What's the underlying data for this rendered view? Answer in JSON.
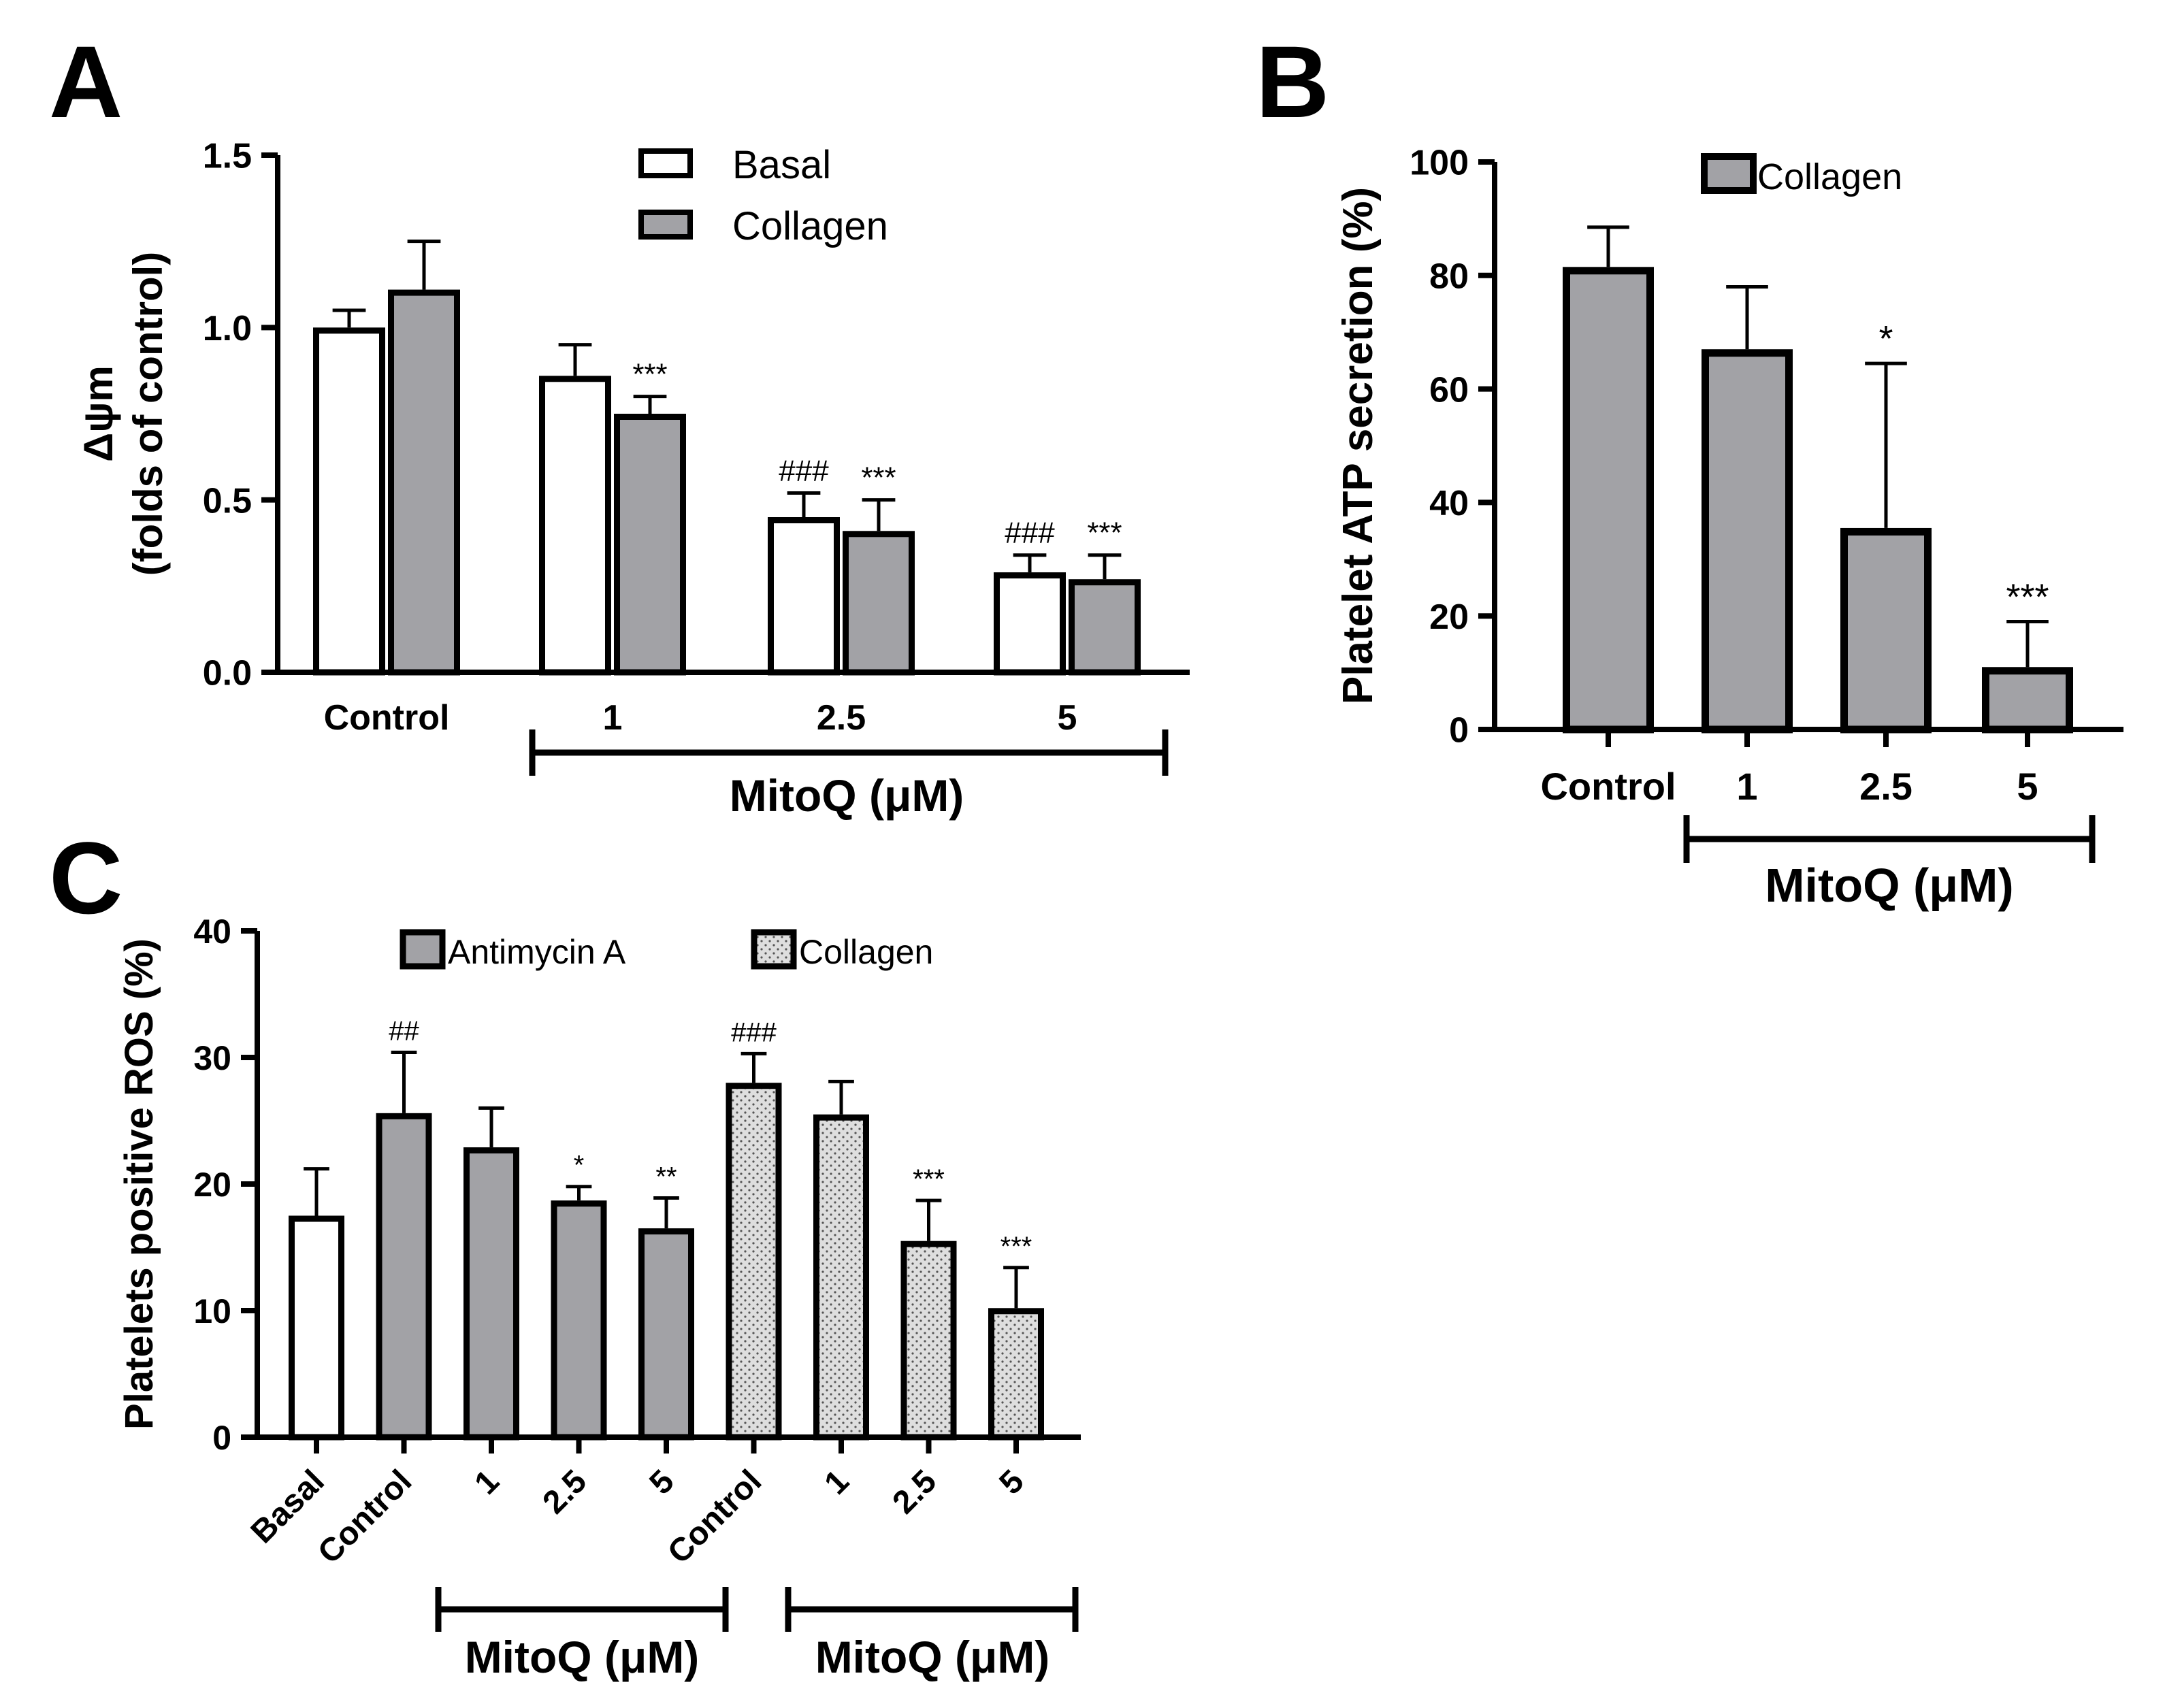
{
  "chart_data": [
    {
      "panel": "A",
      "type": "bar",
      "ylabel_line1": "Δψm",
      "ylabel_line2": "(folds of control)",
      "ylim": [
        0,
        1.5
      ],
      "yticks": [
        "0.0",
        "0.5",
        "1.0",
        "1.5"
      ],
      "categories": [
        "Control",
        "1",
        "2.5",
        "5"
      ],
      "group_label": "MitoQ (μM)",
      "legend": [
        "Basal",
        "Collagen"
      ],
      "series": [
        {
          "name": "Basal",
          "fill": "#ffffff",
          "values": [
            1.0,
            0.86,
            0.45,
            0.29
          ],
          "errors": [
            0.05,
            0.09,
            0.07,
            0.05
          ],
          "annotations": [
            "",
            "",
            "###",
            "###"
          ]
        },
        {
          "name": "Collagen",
          "fill": "#a2a2a6",
          "values": [
            1.11,
            0.75,
            0.41,
            0.27
          ],
          "errors": [
            0.14,
            0.05,
            0.09,
            0.07
          ],
          "annotations": [
            "",
            "***",
            "***",
            "***"
          ]
        }
      ]
    },
    {
      "panel": "B",
      "type": "bar",
      "ylabel": "Platelet ATP secretion (%)",
      "ylim": [
        0,
        100
      ],
      "yticks": [
        "0",
        "20",
        "40",
        "60",
        "80",
        "100"
      ],
      "categories": [
        "Control",
        "1",
        "2.5",
        "5"
      ],
      "group_label": "MitoQ (μM)",
      "legend": [
        "Collagen"
      ],
      "series": [
        {
          "name": "Collagen",
          "fill": "#a2a2a6",
          "values": [
            81.5,
            67,
            35.5,
            11
          ],
          "errors": [
            7,
            11,
            29,
            8
          ],
          "annotations": [
            "",
            "",
            "*",
            "***"
          ]
        }
      ]
    },
    {
      "panel": "C",
      "type": "bar",
      "ylabel": "Platelets positive ROS (%)",
      "ylim": [
        0,
        40
      ],
      "yticks": [
        "0",
        "10",
        "20",
        "30",
        "40"
      ],
      "categories": [
        "Basal",
        "Control",
        "1",
        "2.5",
        "5",
        "Control",
        "1",
        "2.5",
        "5"
      ],
      "group_label": "MitoQ (μM)",
      "legend": [
        "Antimycin A",
        "Collagen"
      ],
      "bars": [
        {
          "category": "Basal",
          "series": "Basal",
          "fill": "#ffffff",
          "value": 17.5,
          "error": 3.7,
          "annotation": ""
        },
        {
          "category": "Control",
          "series": "Antimycin A",
          "fill": "#a2a2a6",
          "value": 25.6,
          "error": 4.8,
          "annotation": "##"
        },
        {
          "category": "1",
          "series": "Antimycin A",
          "fill": "#a2a2a6",
          "value": 22.9,
          "error": 3.1,
          "annotation": ""
        },
        {
          "category": "2.5",
          "series": "Antimycin A",
          "fill": "#a2a2a6",
          "value": 18.7,
          "error": 1.1,
          "annotation": "*"
        },
        {
          "category": "5",
          "series": "Antimycin A",
          "fill": "#a2a2a6",
          "value": 16.5,
          "error": 2.4,
          "annotation": "**"
        },
        {
          "category": "Control",
          "series": "Collagen",
          "fill": "dots",
          "value": 28.0,
          "error": 2.3,
          "annotation": "###"
        },
        {
          "category": "1",
          "series": "Collagen",
          "fill": "dots",
          "value": 25.5,
          "error": 2.6,
          "annotation": ""
        },
        {
          "category": "2.5",
          "series": "Collagen",
          "fill": "dots",
          "value": 15.5,
          "error": 3.2,
          "annotation": "***"
        },
        {
          "category": "5",
          "series": "Collagen",
          "fill": "dots",
          "value": 10.2,
          "error": 3.2,
          "annotation": "***"
        }
      ]
    }
  ],
  "panels": {
    "a_label": "A",
    "b_label": "B",
    "c_label": "C"
  }
}
